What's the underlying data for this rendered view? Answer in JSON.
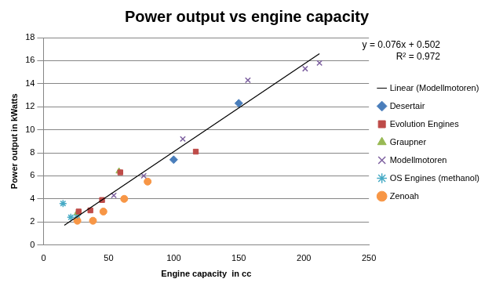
{
  "chart_data": {
    "type": "scatter",
    "title": "Power output vs engine capacity",
    "x_label": "Engine capacity  in cc",
    "y_label": "Power output in kWatts",
    "xlim": [
      0,
      250
    ],
    "xticks": [
      0,
      50,
      100,
      150,
      200,
      250
    ],
    "ylim": [
      0,
      18
    ],
    "yticks": [
      0,
      2,
      4,
      6,
      8,
      10,
      12,
      14,
      16,
      18
    ],
    "grid": true,
    "legend": "right",
    "annotations": [
      "y = 0.076x + 0.502",
      "R² = 0.972"
    ],
    "series": [
      {
        "name": "Desertair",
        "color": "#4a7ebb",
        "marker": "diamond",
        "x": [
          100,
          150
        ],
        "values": [
          7.4,
          12.3
        ]
      },
      {
        "name": "Evolution Engines",
        "color": "#be4b48",
        "marker": "square",
        "x": [
          27,
          36,
          45,
          59,
          117
        ],
        "values": [
          2.9,
          3.0,
          3.9,
          6.3,
          8.1
        ]
      },
      {
        "name": "Graupner",
        "color": "#98b954",
        "marker": "triangle",
        "x": [
          26,
          58
        ],
        "values": [
          2.8,
          6.4
        ]
      },
      {
        "name": "Modellmotoren",
        "color": "#7d60a0",
        "marker": "x",
        "x": [
          54,
          77,
          107,
          157,
          201,
          212
        ],
        "values": [
          4.3,
          6.0,
          9.2,
          14.3,
          15.3,
          15.8
        ]
      },
      {
        "name": "OS Engines (methanol)",
        "color": "#46aac5",
        "marker": "star",
        "x": [
          15,
          21,
          26
        ],
        "values": [
          3.6,
          2.4,
          2.6
        ]
      },
      {
        "name": "Zenoah",
        "color": "#f79646",
        "marker": "circle",
        "x": [
          26,
          38,
          46,
          62,
          80
        ],
        "values": [
          2.1,
          2.1,
          2.9,
          4.0,
          5.5
        ]
      },
      {
        "name": "Linear (Modellmotoren)",
        "color": "#000000",
        "type": "line",
        "line_style": "solid",
        "x": [
          16,
          212
        ],
        "values": [
          1.7,
          16.6
        ]
      }
    ]
  }
}
